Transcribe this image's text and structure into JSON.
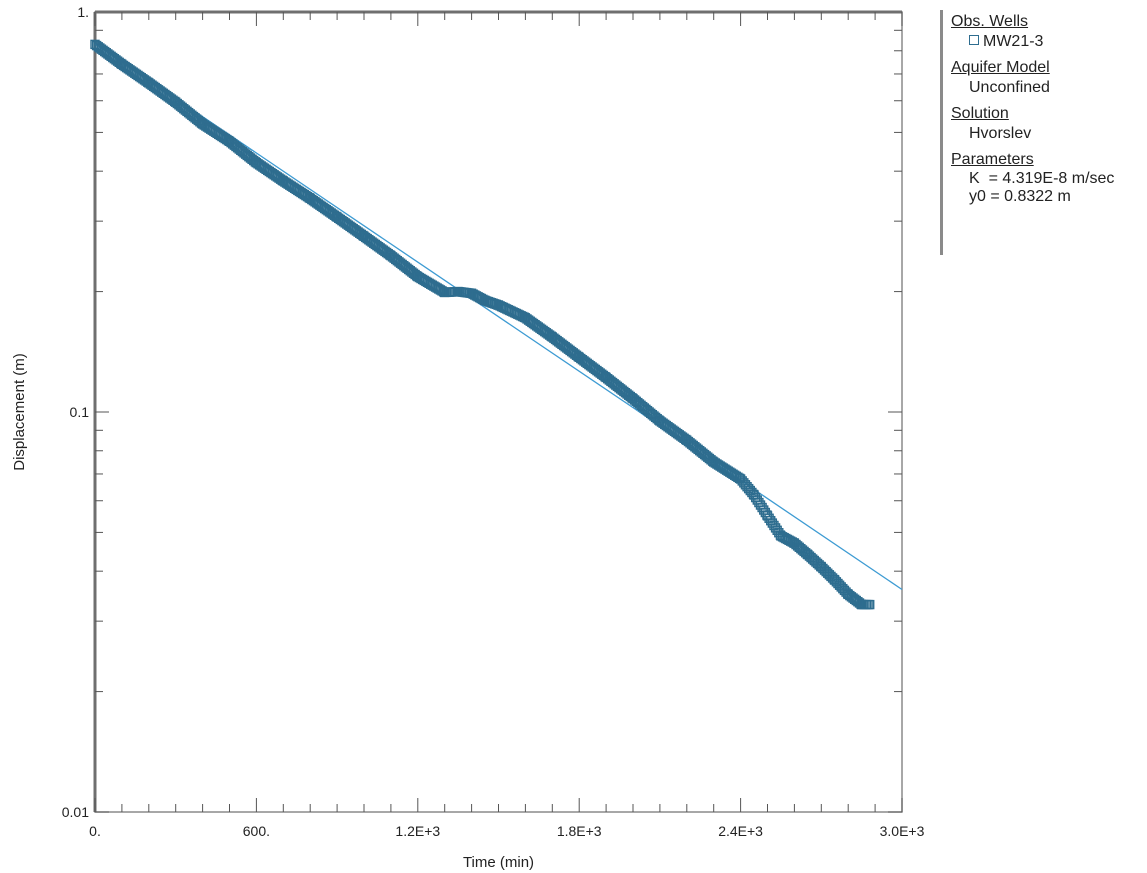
{
  "chart_data": {
    "type": "scatter",
    "xlabel": "Time (min)",
    "ylabel": "Displacement (m)",
    "xlim": [
      0,
      3000
    ],
    "ylim": [
      0.01,
      1
    ],
    "yscale": "log",
    "x_ticks": [
      0,
      600,
      1200,
      1800,
      2400,
      3000
    ],
    "x_tick_labels": [
      "0.",
      "600.",
      "1.2E+3",
      "1.8E+3",
      "2.4E+3",
      "3.0E+3"
    ],
    "y_ticks": [
      0.01,
      0.1,
      1
    ],
    "y_tick_labels": [
      "0.01",
      "0.1",
      "1."
    ],
    "grid": false,
    "legend_position": "right",
    "series": [
      {
        "name": "MW21-3",
        "kind": "observed",
        "marker": "hollow-square",
        "color": "#2e6d8f",
        "x": [
          0,
          100,
          200,
          300,
          400,
          500,
          600,
          700,
          800,
          900,
          1000,
          1100,
          1200,
          1300,
          1350,
          1400,
          1450,
          1500,
          1600,
          1700,
          1800,
          1900,
          2000,
          2100,
          2200,
          2300,
          2400,
          2450,
          2500,
          2550,
          2600,
          2650,
          2700,
          2750,
          2800,
          2850,
          2880
        ],
        "y": [
          0.83,
          0.74,
          0.665,
          0.595,
          0.525,
          0.475,
          0.42,
          0.378,
          0.342,
          0.307,
          0.275,
          0.246,
          0.218,
          0.199,
          0.2,
          0.198,
          0.19,
          0.185,
          0.172,
          0.154,
          0.137,
          0.122,
          0.108,
          0.095,
          0.085,
          0.075,
          0.068,
          0.062,
          0.055,
          0.049,
          0.047,
          0.044,
          0.041,
          0.038,
          0.035,
          0.033,
          0.033
        ]
      },
      {
        "name": "Hvorslev fit",
        "kind": "fit",
        "color": "#3d9bd3",
        "x": [
          0,
          3000
        ],
        "y": [
          0.8322,
          0.036
        ]
      }
    ]
  },
  "legend": {
    "obs_wells_heading": "Obs. Wells",
    "well_name": "MW21-3",
    "aquifer_model_heading": "Aquifer Model",
    "aquifer_model_value": "Unconfined",
    "solution_heading": "Solution",
    "solution_value": "Hvorslev",
    "parameters_heading": "Parameters",
    "param_k": "K  = 4.319E-8 m/sec",
    "param_y0": "y0 = 0.8322 m"
  }
}
